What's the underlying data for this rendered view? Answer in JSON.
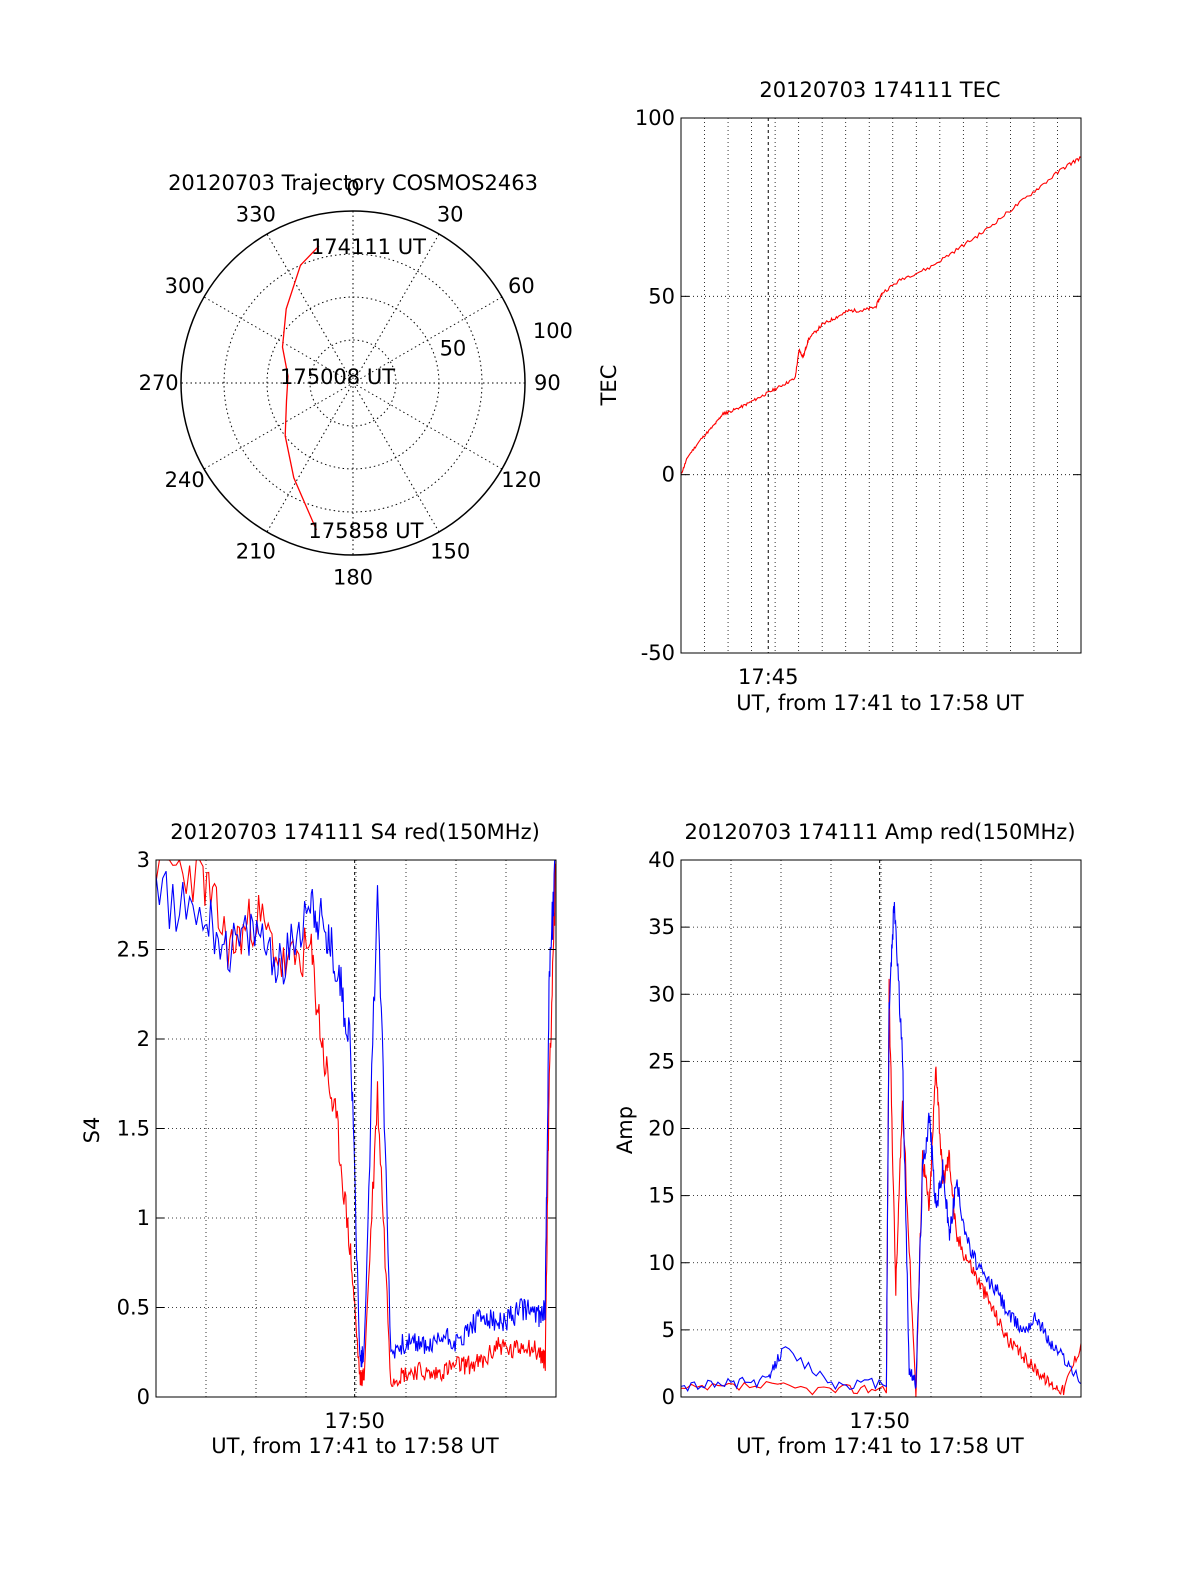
{
  "chart_data": [
    {
      "type": "polar-trajectory",
      "title": "20120703 Trajectory COSMOS2463",
      "azimuth_labels": [
        "0",
        "30",
        "60",
        "90",
        "120",
        "150",
        "180",
        "210",
        "240",
        "270",
        "300",
        "330"
      ],
      "radial_labels": [
        "50",
        "100"
      ],
      "radial_max": 100,
      "grid": true,
      "series": [
        {
          "color": "#ff0000",
          "points": [
            {
              "az": 346,
              "zen": 82
            },
            {
              "az": 336,
              "zen": 75
            },
            {
              "az": 318,
              "zen": 58
            },
            {
              "az": 297,
              "zen": 46
            },
            {
              "az": 276,
              "zen": 38
            },
            {
              "az": 255,
              "zen": 40
            },
            {
              "az": 232,
              "zen": 50
            },
            {
              "az": 212,
              "zen": 65
            },
            {
              "az": 194,
              "zen": 88
            }
          ]
        }
      ],
      "annotations": [
        {
          "text": "174111 UT",
          "az": 346,
          "zen": 82
        },
        {
          "text": "175008 UT",
          "az": 276,
          "zen": 38
        },
        {
          "text": "175858 UT",
          "az": 194,
          "zen": 88
        }
      ]
    },
    {
      "type": "line",
      "title": "20120703 174111 TEC",
      "xlabel": "UT, from 17:41 to 17:58 UT",
      "ylabel": "TEC",
      "xlim": [
        17.685,
        17.983
      ],
      "ylim": [
        -50,
        100
      ],
      "yticks": [
        "-50",
        "0",
        "50",
        "100"
      ],
      "xticks": [
        {
          "label": "17:45",
          "x": 17.75
        }
      ],
      "grid": true,
      "series": [
        {
          "color": "#ff0000",
          "x": [
            17.685,
            17.69,
            17.7,
            17.71,
            17.716,
            17.72,
            17.73,
            17.74,
            17.75,
            17.76,
            17.77,
            17.773,
            17.776,
            17.78,
            17.79,
            17.8,
            17.81,
            17.82,
            17.83,
            17.835,
            17.85,
            17.87,
            17.89,
            17.91,
            17.93,
            17.95,
            17.97,
            17.983
          ],
          "y": [
            0,
            5,
            10,
            14,
            17,
            17.5,
            19,
            21,
            23,
            25,
            27,
            35,
            33,
            38,
            42,
            44,
            46,
            46,
            47,
            51,
            55,
            58,
            63,
            68,
            74,
            80,
            86,
            89
          ]
        }
      ]
    },
    {
      "type": "line",
      "title": "20120703 174111 S4 red(150MHz)",
      "xlabel": "UT, from 17:41 to 17:58 UT",
      "ylabel": "S4",
      "xlim": [
        17.685,
        17.983
      ],
      "ylim": [
        0,
        3
      ],
      "yticks": [
        "0",
        "0.5",
        "1",
        "1.5",
        "2",
        "2.5",
        "3"
      ],
      "xticks": [
        {
          "label": "17:50",
          "x": 17.833
        }
      ],
      "grid": true,
      "series": [
        {
          "color": "#ff0000",
          "x": [
            17.685,
            17.72,
            17.74,
            17.76,
            17.78,
            17.8,
            17.81,
            17.82,
            17.83,
            17.837,
            17.84,
            17.85,
            17.86,
            17.87,
            17.88,
            17.89,
            17.9,
            17.91,
            17.92,
            17.93,
            17.94,
            17.95,
            17.96,
            17.97,
            17.975,
            17.978,
            17.983
          ],
          "y": [
            3,
            2.9,
            2.5,
            2.7,
            2.4,
            2.5,
            1.9,
            1.5,
            0.8,
            0.1,
            0.12,
            1.7,
            0.1,
            0.13,
            0.15,
            0.12,
            0.15,
            0.18,
            0.18,
            0.2,
            0.3,
            0.25,
            0.3,
            0.25,
            0.2,
            1.8,
            3
          ]
        },
        {
          "color": "#0000ff",
          "x": [
            17.685,
            17.72,
            17.74,
            17.76,
            17.78,
            17.8,
            17.81,
            17.82,
            17.83,
            17.837,
            17.84,
            17.85,
            17.86,
            17.87,
            17.88,
            17.89,
            17.9,
            17.91,
            17.92,
            17.93,
            17.94,
            17.95,
            17.96,
            17.97,
            17.975,
            17.978,
            17.983
          ],
          "y": [
            2.8,
            2.7,
            2.5,
            2.6,
            2.4,
            2.8,
            2.6,
            2.4,
            2.0,
            0.2,
            0.25,
            2.9,
            0.25,
            0.3,
            0.3,
            0.28,
            0.35,
            0.3,
            0.4,
            0.45,
            0.4,
            0.45,
            0.5,
            0.45,
            0.5,
            2.4,
            3
          ]
        }
      ]
    },
    {
      "type": "line",
      "title": "20120703 174111 Amp red(150MHz)",
      "xlabel": "UT, from 17:41 to 17:58 UT",
      "ylabel": "Amp",
      "xlim": [
        17.685,
        17.983
      ],
      "ylim": [
        0,
        40
      ],
      "yticks": [
        "0",
        "5",
        "10",
        "15",
        "20",
        "25",
        "30",
        "35",
        "40"
      ],
      "xticks": [
        {
          "label": "17:50",
          "x": 17.833
        }
      ],
      "grid": true,
      "series": [
        {
          "color": "#ff0000",
          "x": [
            17.685,
            17.74,
            17.8,
            17.838,
            17.84,
            17.845,
            17.85,
            17.86,
            17.865,
            17.87,
            17.875,
            17.88,
            17.885,
            17.89,
            17.9,
            17.91,
            17.92,
            17.93,
            17.94,
            17.95,
            17.96,
            17.97,
            17.983
          ],
          "y": [
            0.5,
            0.8,
            0.5,
            0.7,
            30,
            8,
            22,
            0.3,
            18,
            14,
            25,
            16,
            18,
            12,
            10,
            8,
            6,
            4,
            3,
            2,
            1,
            0.5,
            4
          ]
        },
        {
          "color": "#0000ff",
          "x": [
            17.685,
            17.72,
            17.75,
            17.76,
            17.8,
            17.838,
            17.84,
            17.844,
            17.85,
            17.855,
            17.86,
            17.865,
            17.87,
            17.875,
            17.88,
            17.885,
            17.89,
            17.9,
            17.91,
            17.92,
            17.93,
            17.94,
            17.95,
            17.96,
            17.97,
            17.983
          ],
          "y": [
            0.8,
            1.0,
            1.2,
            3.5,
            0.9,
            1.0,
            29,
            37,
            25,
            2,
            1,
            17,
            21,
            14,
            17,
            12,
            16,
            11,
            9,
            8,
            6,
            5,
            6,
            4,
            3,
            1
          ]
        }
      ]
    }
  ]
}
